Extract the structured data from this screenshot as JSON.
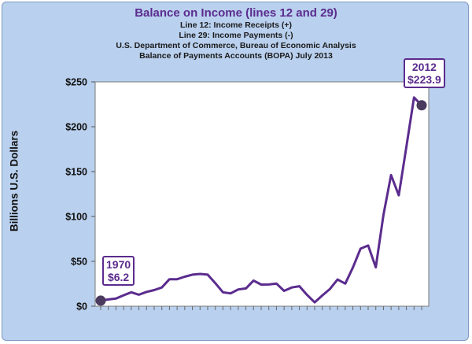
{
  "chart_data": {
    "type": "line",
    "title": "Balance on Income (lines 12 and 29)",
    "subtitle_lines": [
      "Line 12:  Income Receipts (+)",
      "Line 29: Income Payments (-)",
      "U.S. Department of Commerce, Bureau of Economic Analysis",
      "Balance of Payments Accounts (BOPA) July 2013"
    ],
    "ylabel": "Billions U.S. Dollars",
    "xlabel": "",
    "ylim": [
      0,
      250
    ],
    "yticks": [
      0,
      50,
      100,
      150,
      200,
      250
    ],
    "ytick_labels": [
      "$0",
      "$50",
      "$100",
      "$150",
      "$200",
      "$250"
    ],
    "x": [
      1970,
      1971,
      1972,
      1973,
      1974,
      1975,
      1976,
      1977,
      1978,
      1979,
      1980,
      1981,
      1982,
      1983,
      1984,
      1985,
      1986,
      1987,
      1988,
      1989,
      1990,
      1991,
      1992,
      1993,
      1994,
      1995,
      1996,
      1997,
      1998,
      1999,
      2000,
      2001,
      2002,
      2003,
      2004,
      2005,
      2006,
      2007,
      2008,
      2009,
      2010,
      2011,
      2012
    ],
    "series": [
      {
        "values": [
          6.2,
          7.5,
          8.5,
          12.2,
          15.5,
          12.8,
          16.0,
          18.0,
          20.9,
          30.1,
          30.1,
          32.9,
          35.2,
          36.0,
          35.2,
          25.7,
          15.5,
          14.3,
          18.7,
          19.8,
          28.6,
          24.1,
          24.2,
          25.3,
          17.1,
          20.9,
          22.3,
          12.6,
          4.3,
          11.9,
          19.2,
          29.7,
          25.2,
          43.2,
          64.1,
          67.6,
          43.3,
          101.5,
          146.1,
          123.6,
          177.7,
          232.6,
          223.9
        ]
      }
    ],
    "grid": false,
    "line_color": "#5b2c8e",
    "plot_background": "#ffffff",
    "panel_background": "#b9d0ee",
    "annotations": [
      {
        "year_label": "1970",
        "value_label": "$6.2"
      },
      {
        "year_label": "2012",
        "value_label": "$223.9"
      }
    ]
  }
}
